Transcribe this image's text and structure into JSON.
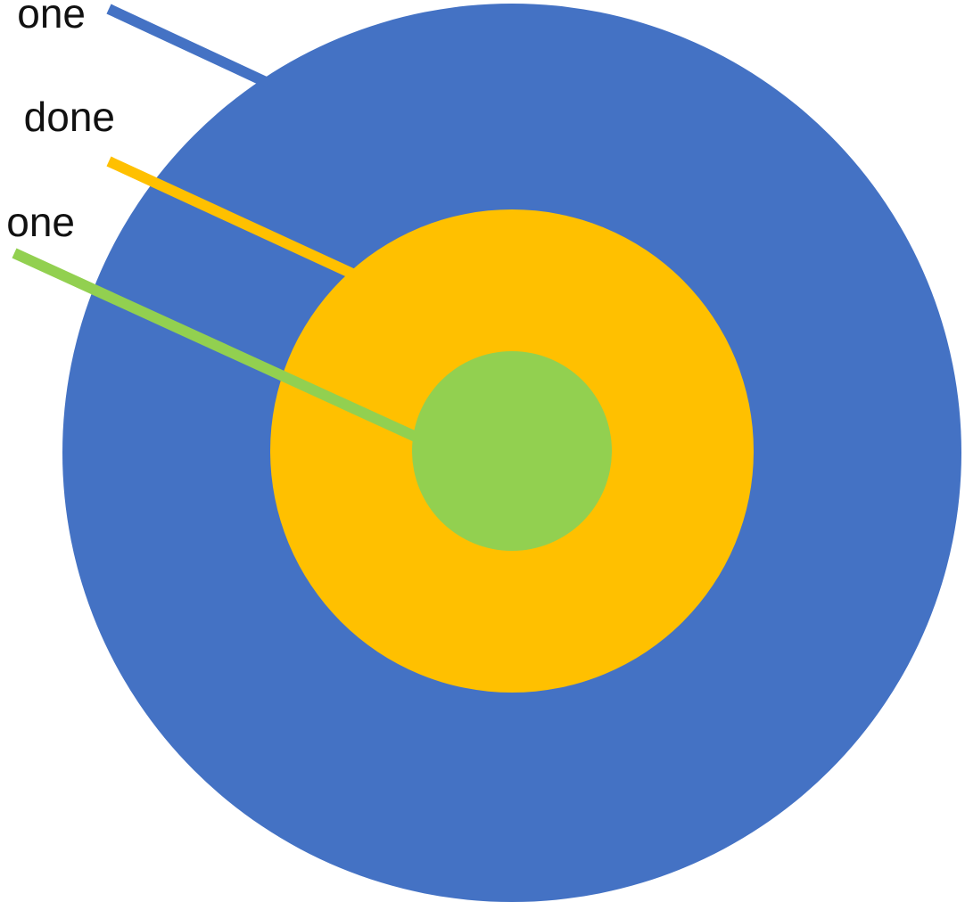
{
  "diagram": {
    "colors": {
      "outer": "#4472C4",
      "middle": "#FFC000",
      "inner": "#92D050",
      "text": "#111111",
      "background": "#FFFFFF"
    },
    "rings": [
      {
        "name": "outer",
        "color_key": "outer"
      },
      {
        "name": "middle",
        "color_key": "middle"
      },
      {
        "name": "inner",
        "color_key": "inner"
      }
    ],
    "labels": [
      {
        "text": "one"
      },
      {
        "text": "done"
      },
      {
        "text": "one"
      }
    ]
  }
}
